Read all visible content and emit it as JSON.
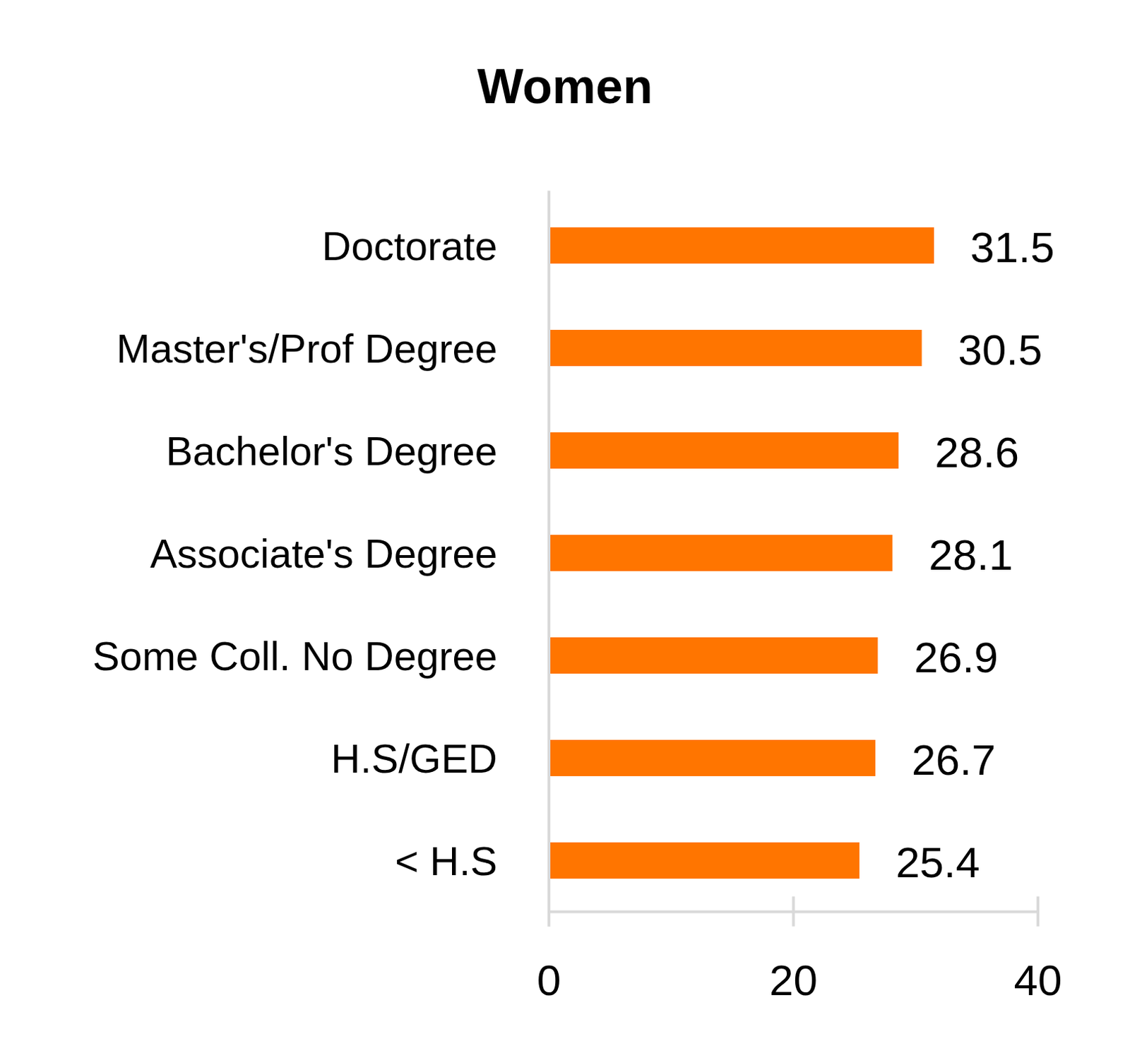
{
  "chart_data": {
    "type": "bar",
    "title": "Women",
    "orientation": "horizontal",
    "categories": [
      "Doctorate",
      "Master's/Prof Degree",
      "Bachelor's Degree",
      "Associate's Degree",
      "Some Coll. No Degree",
      "H.S/GED",
      "< H.S"
    ],
    "values": [
      31.5,
      30.5,
      28.6,
      28.1,
      26.9,
      26.7,
      25.4
    ],
    "color": "#ff7500",
    "xlim": [
      0,
      40
    ],
    "xticks": [
      0,
      20,
      40
    ],
    "grid": false,
    "data_labels": true
  }
}
